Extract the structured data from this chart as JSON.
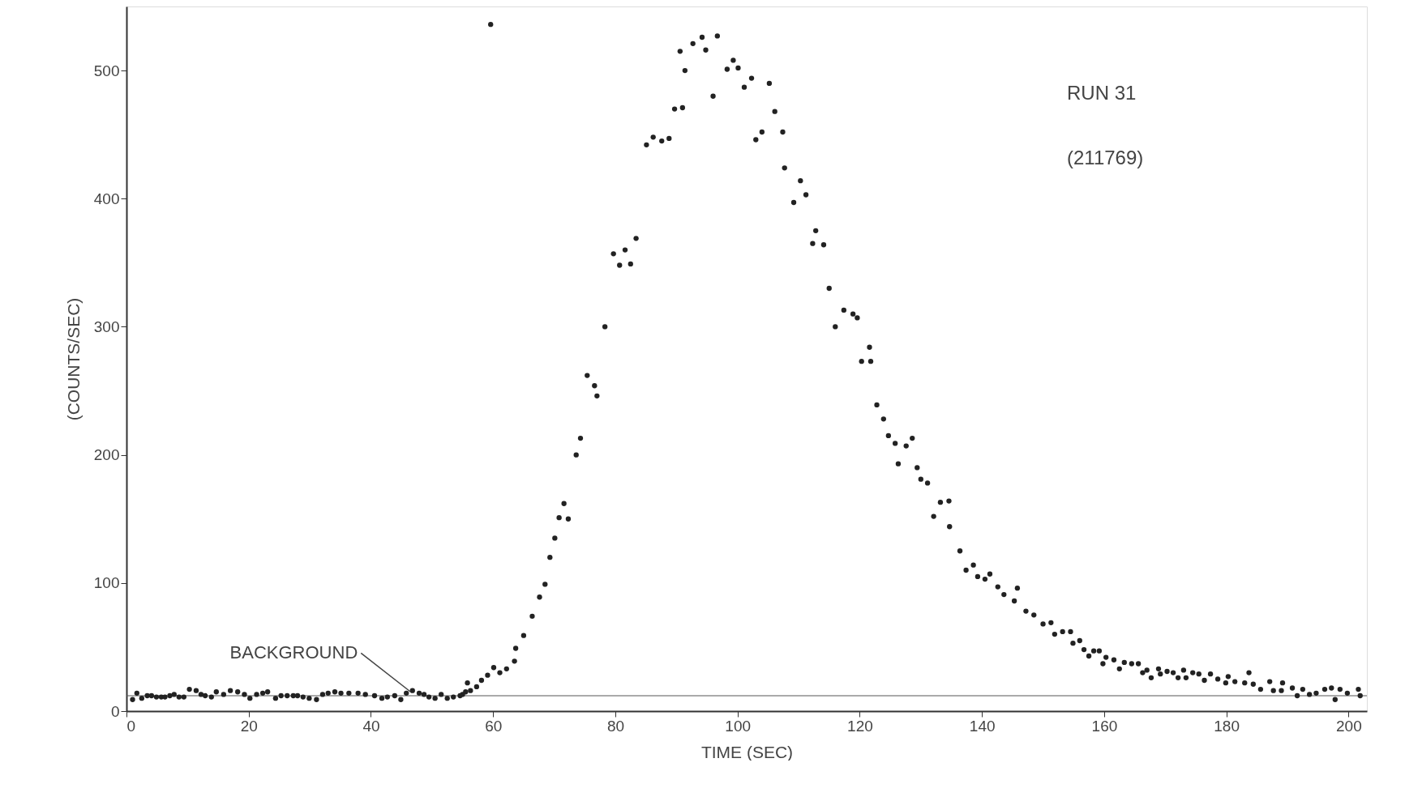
{
  "chart_data": {
    "type": "scatter",
    "xlabel": "TIME (SEC)",
    "ylabel": "(COUNTS/SEC)",
    "annotations": [
      "RUN 31",
      "(211769)",
      {
        "text": "BACKGROUND",
        "x": 46.5,
        "y": 15
      }
    ],
    "xlim": [
      0,
      203
    ],
    "xticks": [
      0,
      20,
      40,
      60,
      80,
      100,
      120,
      140,
      160,
      180,
      200
    ],
    "ylim": [
      0,
      550
    ],
    "yticks": [
      0,
      100,
      200,
      300,
      400,
      500
    ],
    "ref_lines": [
      {
        "axis": "y",
        "value": 12,
        "color": "#555555"
      }
    ],
    "grid": false,
    "legend": false,
    "marker": "circle",
    "series": [
      {
        "color": "#222222",
        "x": [
          1.0,
          1.7,
          2.5,
          3.4,
          4.1,
          4.9,
          5.7,
          6.3,
          7.1,
          7.8,
          8.6,
          9.4,
          10.3,
          11.4,
          12.2,
          12.9,
          13.9,
          14.7,
          15.9,
          17.0,
          18.2,
          19.3,
          20.2,
          21.3,
          22.3,
          23.1,
          24.4,
          25.3,
          26.3,
          27.3,
          28.0,
          28.9,
          29.9,
          31.1,
          32.1,
          33.0,
          34.1,
          35.1,
          36.4,
          37.9,
          39.1,
          40.6,
          41.8,
          42.7,
          43.9,
          44.9,
          45.8,
          46.8,
          47.9,
          48.7,
          49.5,
          50.5,
          51.5,
          52.5,
          53.5,
          54.6,
          55.0,
          55.5,
          55.8,
          56.3,
          57.3,
          58.1,
          59.1,
          60.1,
          61.1,
          62.2,
          63.5,
          63.7,
          65.0,
          66.4,
          67.6,
          68.5,
          69.3,
          70.1,
          70.8,
          71.6,
          72.3,
          73.6,
          74.3,
          75.4,
          76.6,
          77.0,
          78.3,
          79.7,
          80.7,
          81.6,
          82.5,
          83.4,
          85.1,
          86.2,
          87.6,
          88.8,
          89.7,
          91.0,
          90.6,
          91.4,
          92.7,
          94.2,
          94.8,
          96.0,
          96.7,
          98.3,
          99.3,
          100.1,
          101.1,
          102.3,
          103.0,
          104.0,
          105.2,
          106.1,
          107.4,
          107.7,
          109.2,
          110.3,
          111.2,
          112.3,
          112.8,
          114.1,
          115.0,
          116.0,
          117.4,
          118.9,
          119.6,
          120.3,
          121.6,
          121.8,
          122.8,
          123.9,
          124.7,
          125.8,
          126.3,
          127.6,
          128.6,
          129.4,
          130.0,
          131.1,
          132.1,
          133.2,
          134.6,
          134.7,
          136.4,
          137.4,
          138.6,
          139.3,
          140.5,
          141.3,
          142.6,
          143.6,
          145.3,
          145.8,
          147.2,
          148.5,
          150.0,
          151.3,
          151.9,
          153.2,
          154.5,
          154.9,
          156.0,
          156.7,
          157.5,
          158.3,
          159.2,
          159.8,
          160.3,
          161.6,
          162.5,
          163.3,
          164.5,
          165.6,
          166.3,
          167.0,
          167.7,
          168.9,
          169.2,
          170.3,
          171.3,
          172.1,
          173.0,
          173.4,
          174.5,
          175.5,
          176.4,
          177.4,
          178.6,
          179.9,
          180.3,
          181.4,
          183.0,
          183.7,
          184.4,
          185.6,
          187.1,
          187.7,
          189.0,
          189.2,
          190.8,
          191.6,
          192.5,
          193.6,
          194.7,
          196.1,
          197.2,
          197.8,
          198.6,
          199.8,
          201.6,
          201.9,
          59.6
        ],
        "values": [
          9,
          14,
          10,
          12,
          12,
          11,
          11,
          11,
          12,
          13,
          11,
          11,
          17,
          16,
          13,
          12,
          11,
          15,
          13,
          16,
          15,
          13,
          10,
          13,
          14,
          15,
          10,
          12,
          12,
          12,
          12,
          11,
          10,
          9,
          13,
          14,
          15,
          14,
          14,
          14,
          13,
          12,
          10,
          11,
          12,
          9,
          14,
          16,
          14,
          13,
          11,
          10,
          13,
          10,
          11,
          12,
          13,
          15,
          22,
          16,
          19,
          24,
          28,
          34,
          30,
          33,
          39,
          49,
          59,
          74,
          89,
          99,
          120,
          135,
          151,
          162,
          150,
          200,
          213,
          262,
          254,
          246,
          300,
          357,
          348,
          360,
          349,
          369,
          442,
          448,
          445,
          447,
          470,
          471,
          515,
          500,
          521,
          526,
          516,
          480,
          527,
          501,
          508,
          502,
          487,
          494,
          446,
          452,
          490,
          468,
          452,
          424,
          397,
          414,
          403,
          365,
          375,
          364,
          330,
          300,
          313,
          310,
          307,
          273,
          284,
          273,
          239,
          228,
          215,
          209,
          193,
          207,
          213,
          190,
          181,
          178,
          152,
          163,
          164,
          144,
          125,
          110,
          114,
          105,
          103,
          107,
          97,
          91,
          86,
          96,
          78,
          75,
          68,
          69,
          60,
          62,
          62,
          53,
          55,
          48,
          43,
          47,
          47,
          37,
          42,
          40,
          33,
          38,
          37,
          37,
          30,
          32,
          26,
          33,
          29,
          31,
          30,
          26,
          32,
          26,
          30,
          29,
          24,
          29,
          25,
          22,
          27,
          23,
          22,
          30,
          21,
          17,
          23,
          16,
          16,
          22,
          18,
          12,
          17,
          13,
          14,
          17,
          18,
          9,
          17,
          14,
          17,
          12,
          536
        ]
      }
    ]
  }
}
